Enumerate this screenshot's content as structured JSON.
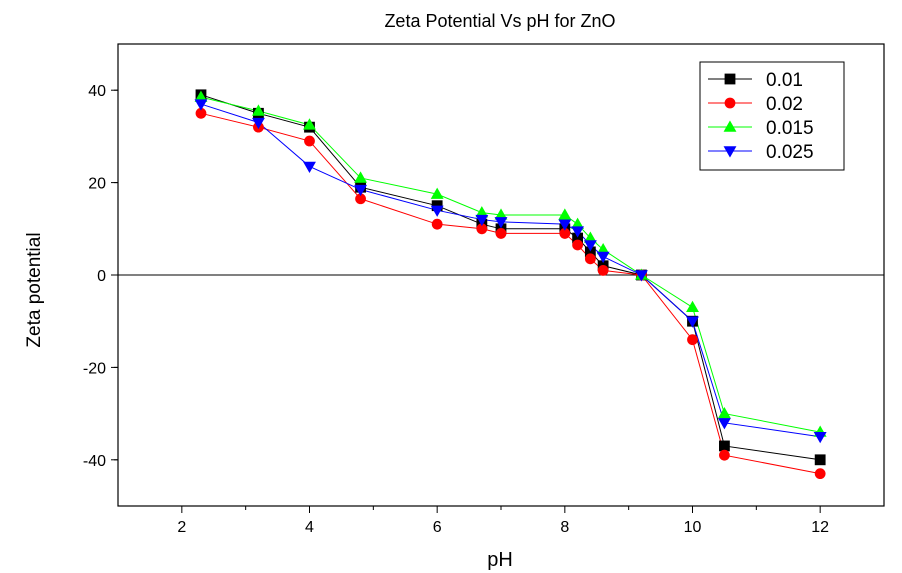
{
  "chart_data": {
    "type": "line",
    "title": "Zeta Potential Vs pH for ZnO",
    "xlabel": "pH",
    "ylabel": "Zeta potential",
    "xlim": [
      1,
      13
    ],
    "ylim": [
      -50,
      50
    ],
    "x_ticks": [
      2,
      4,
      6,
      8,
      10,
      12
    ],
    "x_tick_labels": [
      "2",
      "4",
      "6",
      "8",
      "10",
      "12"
    ],
    "y_ticks": [
      -40,
      -20,
      0,
      20,
      40
    ],
    "y_tick_labels": [
      "-40",
      "-20",
      "0",
      "20",
      "40"
    ],
    "zero_line": true,
    "grid": false,
    "legend_position": "top-right",
    "series": [
      {
        "name": "0.01",
        "color": "#000000",
        "marker": "square",
        "x": [
          2.3,
          3.2,
          4.0,
          4.8,
          6.0,
          6.7,
          7.0,
          8.0,
          8.2,
          8.4,
          8.6,
          9.2,
          10.0,
          10.5,
          12.0
        ],
        "y": [
          39,
          35,
          32,
          19,
          15,
          11,
          10,
          10,
          8,
          5,
          2,
          0,
          -10,
          -37,
          -40
        ]
      },
      {
        "name": "0.02",
        "color": "#ff0000",
        "marker": "circle",
        "x": [
          2.3,
          3.2,
          4.0,
          4.8,
          6.0,
          6.7,
          7.0,
          8.0,
          8.2,
          8.4,
          8.6,
          9.2,
          10.0,
          10.5,
          12.0
        ],
        "y": [
          35,
          32,
          29,
          16.5,
          11,
          10,
          9,
          9,
          6.5,
          3.5,
          1,
          0,
          -14,
          -39,
          -43
        ]
      },
      {
        "name": "0.015",
        "color": "#00ff00",
        "marker": "triangle-up",
        "x": [
          2.3,
          3.2,
          4.0,
          4.8,
          6.0,
          6.7,
          7.0,
          8.0,
          8.2,
          8.4,
          8.6,
          9.2,
          10.0,
          10.5,
          12.0
        ],
        "y": [
          38.5,
          35.5,
          32.5,
          21,
          17.5,
          13.5,
          13,
          13,
          11,
          8,
          5.5,
          0,
          -7,
          -30,
          -34
        ]
      },
      {
        "name": "0.025",
        "color": "#0000ff",
        "marker": "triangle-down",
        "x": [
          2.3,
          3.2,
          4.0,
          4.8,
          6.0,
          6.7,
          7.0,
          8.0,
          8.2,
          8.4,
          8.6,
          9.2,
          10.0,
          10.5,
          12.0
        ],
        "y": [
          37,
          33,
          23.5,
          18.5,
          14,
          12,
          11.5,
          11,
          9.5,
          6.5,
          4,
          0,
          -10,
          -32,
          -35
        ]
      }
    ]
  }
}
